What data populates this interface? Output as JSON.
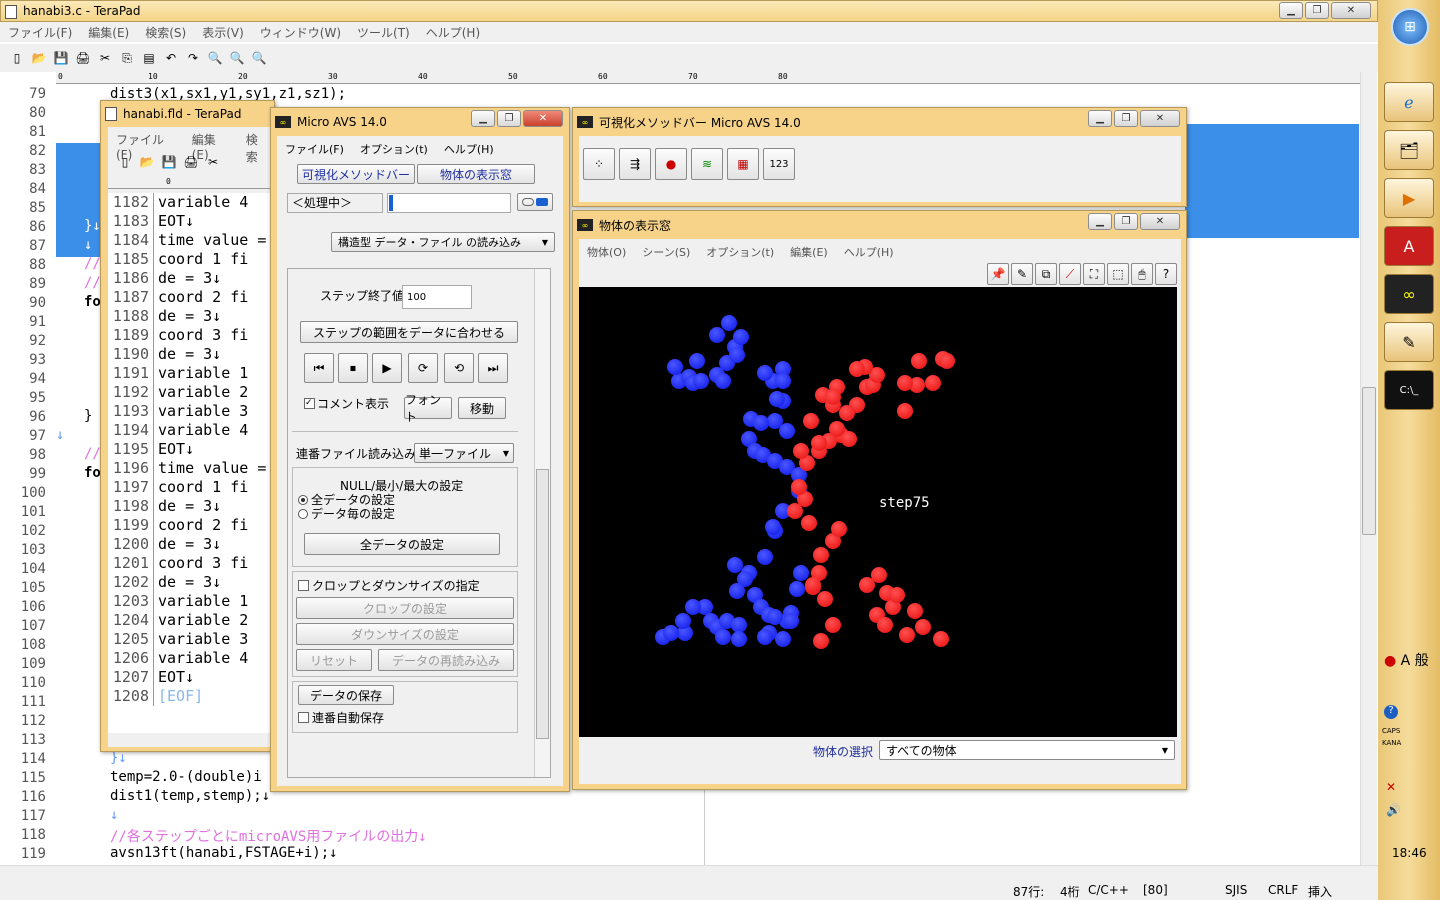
{
  "main_window": {
    "title": "hanabi3.c - TeraPad",
    "menu": [
      "ファイル(F)",
      "編集(E)",
      "検索(S)",
      "表示(V)",
      "ウィンドウ(W)",
      "ツール(T)",
      "ヘルプ(H)"
    ],
    "ruler": [
      "0",
      "10",
      "20",
      "30",
      "40",
      "50",
      "60",
      "70",
      "80"
    ],
    "line_numbers": [
      "79",
      "80",
      "81",
      "82",
      "83",
      "84",
      "85",
      "86",
      "87",
      "88",
      "89",
      "90",
      "91",
      "92",
      "93",
      "94",
      "95",
      "96",
      "97",
      "98",
      "99",
      "100",
      "101",
      "102",
      "103",
      "104",
      "105",
      "106",
      "107",
      "108",
      "109",
      "110",
      "111",
      "112",
      "113",
      "114",
      "115",
      "116",
      "117",
      "118",
      "119"
    ],
    "code_top": "dist3(x1,sx1,y1,sy1,z1,sz1);",
    "code_left": {
      "l86": "}↓",
      "l87": "↓",
      "l88": "//",
      "l89": "//",
      "l90": "fo",
      "l96": "}",
      "l97": "↓",
      "l98": "//",
      "l99": "fo"
    },
    "code_bottom": [
      "}↓",
      "temp=2.0-(double)i",
      "dist1(temp,stemp);↓",
      "↓",
      "//各ステップごとにmicroAVS用ファイルの出力↓",
      "avsn13ft(hanabi,FSTAGE+i);↓"
    ],
    "status": {
      "pos": "87行:",
      "col": "4桁",
      "lang": "C/C++",
      "width": "[80]",
      "enc": "SJIS",
      "eol": "CRLF",
      "mode": "挿入"
    }
  },
  "fld_window": {
    "title": "hanabi.fld - TeraPad",
    "menu": [
      "ファイル(F)",
      "編集(E)",
      "検索"
    ],
    "ruler": "0",
    "lines": [
      [
        "1182",
        "variable 4"
      ],
      [
        "1183",
        "EOT↓"
      ],
      [
        "1184",
        "time value ="
      ],
      [
        "1185",
        "coord 1 fi"
      ],
      [
        "1186",
        "de = 3↓"
      ],
      [
        "1187",
        "coord 2 fi"
      ],
      [
        "1188",
        "de = 3↓"
      ],
      [
        "1189",
        "coord 3 fi"
      ],
      [
        "1190",
        "de = 3↓"
      ],
      [
        "1191",
        "variable 1"
      ],
      [
        "1192",
        "variable 2"
      ],
      [
        "1193",
        "variable 3"
      ],
      [
        "1194",
        "variable 4"
      ],
      [
        "1195",
        "EOT↓"
      ],
      [
        "1196",
        "time value ="
      ],
      [
        "1197",
        "coord 1 fi"
      ],
      [
        "1198",
        "de = 3↓"
      ],
      [
        "1199",
        "coord 2 fi"
      ],
      [
        "1200",
        "de = 3↓"
      ],
      [
        "1201",
        "coord 3 fi"
      ],
      [
        "1202",
        "de = 3↓"
      ],
      [
        "1203",
        "variable 1"
      ],
      [
        "1204",
        "variable 2"
      ],
      [
        "1205",
        "variable 3"
      ],
      [
        "1206",
        "variable 4"
      ],
      [
        "1207",
        "EOT↓"
      ],
      [
        "1208",
        "[EOF]"
      ]
    ]
  },
  "avs_window": {
    "title": "Micro AVS 14.0",
    "menu": [
      "ファイル(F)",
      "オプション(t)",
      "ヘルプ(H)"
    ],
    "btn_methods": "可視化メソッドバー",
    "btn_viewer": "物体の表示窓",
    "processing": "＜処理中＞",
    "reader": "構造型 データ・ファイル の読み込み",
    "step_end_label": "ステップ終了値",
    "step_end_value": "100",
    "btn_fit": "ステップの範囲をデータに合わせる",
    "comment": "コメント表示",
    "btn_font": "フォント",
    "btn_move": "移動",
    "seq_label": "連番ファイル読み込み",
    "seq_value": "単一ファイル",
    "null_title": "NULL/最小/最大の設定",
    "radio_all": "全データの設定",
    "radio_each": "データ毎の設定",
    "btn_all": "全データの設定",
    "crop_check": "クロップとダウンサイズの指定",
    "btn_crop": "クロップの設定",
    "btn_down": "ダウンサイズの設定",
    "btn_reset": "リセット",
    "btn_reload": "データの再読み込み",
    "btn_save": "データの保存",
    "autosave": "連番自動保存"
  },
  "methods_window": {
    "title": "可視化メソッドバー Micro AVS 14.0"
  },
  "viewer_window": {
    "title": "物体の表示窓",
    "menu": [
      "物体(O)",
      "シーン(S)",
      "オプション(t)",
      "編集(E)",
      "ヘルプ(H)"
    ],
    "canvas_label": "step75",
    "select_label": "物体の選択",
    "select_value": "すべての物体"
  },
  "taskbar": {
    "clock": "18:46",
    "ime": "A 般",
    "caps": "CAPS",
    "kana": "KANA"
  },
  "colors": {
    "blue": "#0a14e6",
    "red": "#e60a0a",
    "frame": "#f7d38a",
    "select": "#3b8fe8"
  }
}
